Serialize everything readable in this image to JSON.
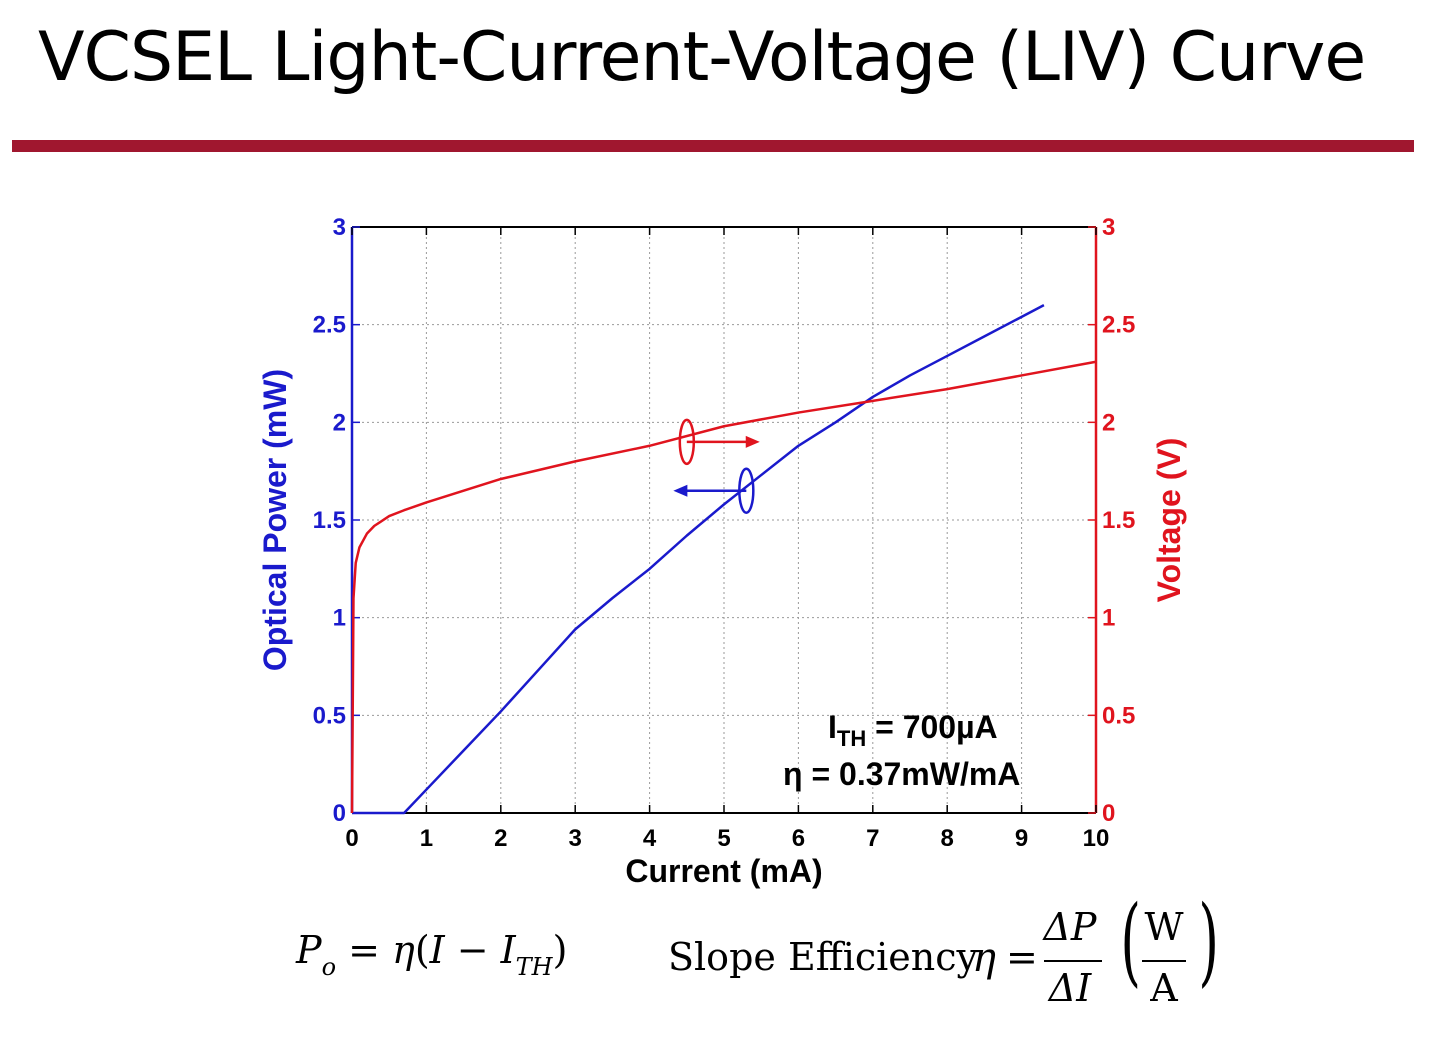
{
  "slide": {
    "title": "VCSEL Light-Current-Voltage (LIV) Curve",
    "rule_color": "#a0172f"
  },
  "chart_data": {
    "type": "line",
    "xlabel": "Current (mA)",
    "ylabel_left": "Optical Power (mW)",
    "ylabel_right": "Voltage (V)",
    "xlim": [
      0,
      10
    ],
    "ylim_left": [
      0,
      3
    ],
    "ylim_right": [
      0,
      3
    ],
    "xticks": [
      "0",
      "1",
      "2",
      "3",
      "4",
      "5",
      "6",
      "7",
      "8",
      "9",
      "10"
    ],
    "yticks_left": [
      "0",
      "0.5",
      "1",
      "1.5",
      "2",
      "2.5",
      "3"
    ],
    "yticks_right": [
      "0",
      "0.5",
      "1",
      "1.5",
      "2",
      "2.5",
      "3"
    ],
    "grid": true,
    "series": [
      {
        "name": "Optical Power",
        "axis": "left",
        "color": "#1a1acc",
        "x": [
          0,
          0.7,
          1.0,
          1.5,
          2.0,
          2.5,
          3.0,
          3.5,
          4.0,
          4.5,
          5.0,
          5.5,
          6.0,
          6.5,
          7.0,
          7.5,
          8.0,
          8.5,
          9.0,
          9.3
        ],
        "values": [
          0,
          0,
          0.12,
          0.32,
          0.52,
          0.73,
          0.94,
          1.1,
          1.25,
          1.42,
          1.58,
          1.73,
          1.88,
          2.0,
          2.13,
          2.24,
          2.34,
          2.44,
          2.54,
          2.6
        ]
      },
      {
        "name": "Voltage",
        "axis": "right",
        "color": "#e0141e",
        "x": [
          0,
          0.02,
          0.05,
          0.1,
          0.2,
          0.3,
          0.5,
          0.7,
          1.0,
          1.5,
          2.0,
          3.0,
          4.0,
          5.0,
          6.0,
          7.0,
          8.0,
          9.0,
          10.0
        ],
        "values": [
          0,
          1.1,
          1.28,
          1.36,
          1.43,
          1.47,
          1.52,
          1.55,
          1.59,
          1.65,
          1.71,
          1.8,
          1.88,
          1.98,
          2.05,
          2.11,
          2.17,
          2.24,
          2.31
        ]
      }
    ],
    "annotations": [
      {
        "label_main": "I",
        "label_sub": "TH",
        "label_rest": " = 700µA"
      },
      {
        "label": "η = 0.37mW/mA"
      }
    ],
    "axis_markers": [
      {
        "target": "right-axis",
        "color": "#e0141e",
        "ellipse_x": 4.5,
        "ellipse_y": 1.9,
        "arrow_to_x": 5.4
      },
      {
        "target": "left-axis",
        "color": "#1a1acc",
        "ellipse_x": 5.3,
        "ellipse_y": 1.65,
        "arrow_to_x": 4.4
      }
    ],
    "axis_colors": {
      "left": "#1a1acc",
      "right": "#e0141e"
    }
  },
  "formulas": {
    "power": {
      "lhs": "P",
      "lhs_sub": "o",
      "eq": " = ",
      "eta": "η",
      "lparen": "(",
      "i": "I",
      "minus": " − ",
      "ith": "I",
      "ith_sub": "TH",
      "rparen": ")"
    },
    "slope": {
      "label": "Slope Efficiency",
      "eta": "η",
      "eq": "=",
      "num": "ΔP",
      "den": "ΔI",
      "unit_num": "W",
      "unit_den": "A",
      "lparen": "(",
      "rparen": ")"
    }
  }
}
